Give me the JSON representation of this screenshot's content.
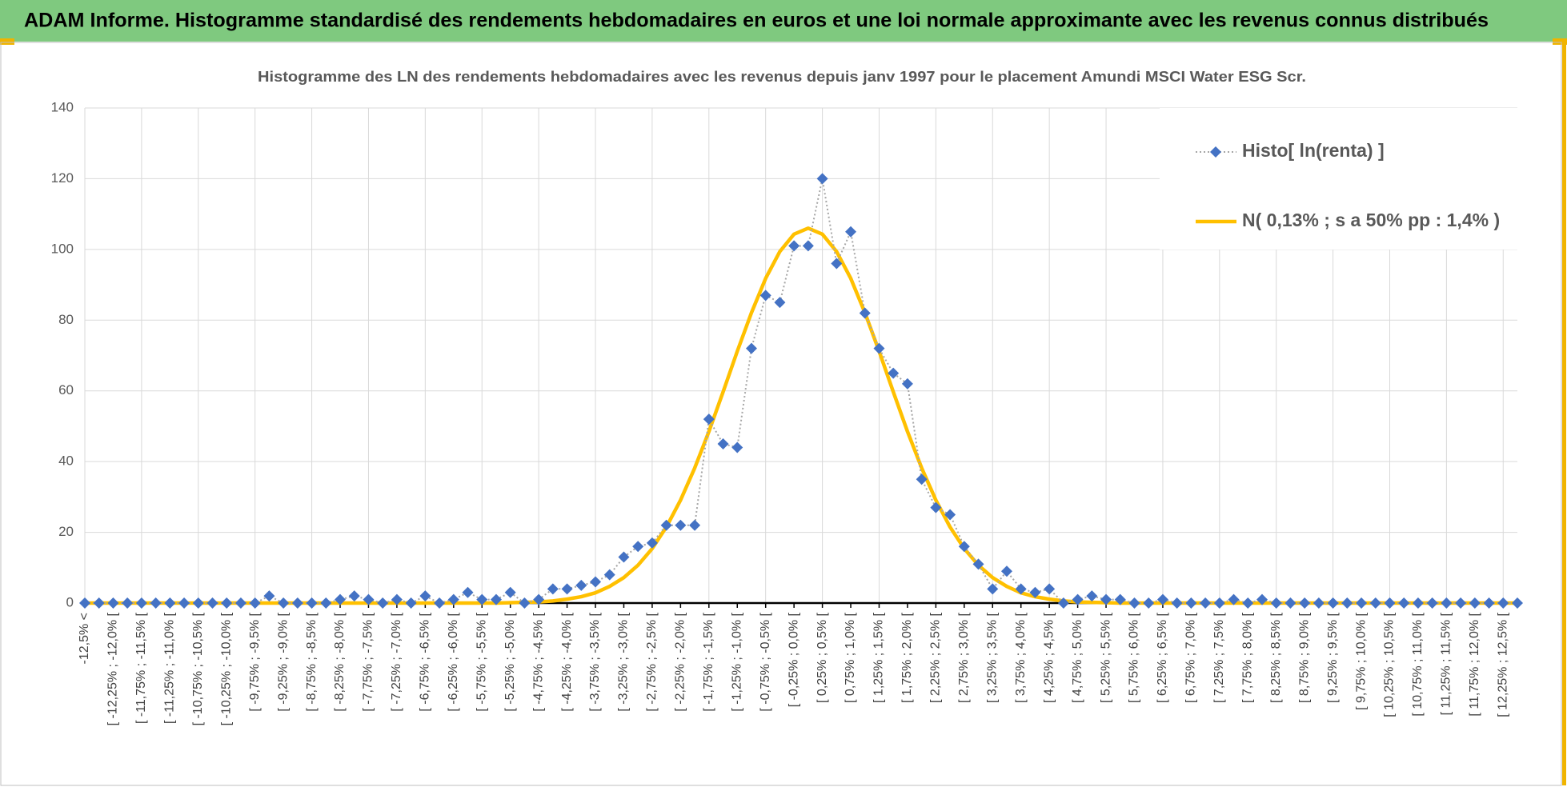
{
  "header": {
    "title": "ADAM Informe. Histogramme standardisé des rendements hebdomadaires en euros et une loi normale approximante avec les revenus connus distribués"
  },
  "chart_data": {
    "type": "line",
    "title": "Histogramme  des LN des rendements  hebdomadaires avec les revenus depuis janv 1997 pour le placement Amundi MSCI Water  ESG Scr.",
    "categories": [
      "-12,5% <",
      null,
      "[ -12,25% ; -12,0% [",
      null,
      "[ -11,75% ; -11,5% [",
      null,
      "[ -11,25% ; -11,0% [",
      null,
      "[ -10,75% ; -10,5% [",
      null,
      "[ -10,25% ; -10,0% [",
      null,
      "[ -9,75% ; -9,5% [",
      null,
      "[ -9,25% ; -9,0% [",
      null,
      "[ -8,75% ; -8,5% [",
      null,
      "[ -8,25% ; -8,0% [",
      null,
      "[ -7,75% ; -7,5% [",
      null,
      "[ -7,25% ; -7,0% [",
      null,
      "[ -6,75% ; -6,5% [",
      null,
      "[ -6,25% ; -6,0% [",
      null,
      "[ -5,75% ; -5,5% [",
      null,
      "[ -5,25% ; -5,0% [",
      null,
      "[ -4,75% ; -4,5% [",
      null,
      "[ -4,25% ; -4,0% [",
      null,
      "[ -3,75% ; -3,5% [",
      null,
      "[ -3,25% ; -3,0% [",
      null,
      "[ -2,75% ; -2,5% [",
      null,
      "[ -2,25% ; -2,0% [",
      null,
      "[ -1,75% ; -1,5% [",
      null,
      "[ -1,25% ; -1,0% [",
      null,
      "[ -0,75% ; -0,5% [",
      null,
      "[ -0,25% ; 0,0% [",
      null,
      "[ 0,25% ; 0,5% [",
      null,
      "[ 0,75% ; 1,0% [",
      null,
      "[ 1,25% ; 1,5% [",
      null,
      "[ 1,75% ; 2,0% [",
      null,
      "[ 2,25% ; 2,5% [",
      null,
      "[ 2,75% ; 3,0% [",
      null,
      "[ 3,25% ; 3,5% [",
      null,
      "[ 3,75% ; 4,0% [",
      null,
      "[ 4,25% ; 4,5% [",
      null,
      "[ 4,75% ; 5,0% [",
      null,
      "[ 5,25% ; 5,5% [",
      null,
      "[ 5,75% ; 6,0% [",
      null,
      "[ 6,25% ; 6,5% [",
      null,
      "[ 6,75% ; 7,0% [",
      null,
      "[ 7,25% ; 7,5% [",
      null,
      "[ 7,75% ; 8,0% [",
      null,
      "[ 8,25% ; 8,5% [",
      null,
      "[ 8,75% ; 9,0% [",
      null,
      "[ 9,25% ; 9,5% [",
      null,
      "[ 9,75% ; 10,0% [",
      null,
      "[ 10,25% ; 10,5% [",
      null,
      "[ 10,75% ; 11,0% [",
      null,
      "[ 11,25% ; 11,5% [",
      null,
      "[ 11,75% ; 12,0% [",
      null,
      "[ 12,25% ; 12,5% [",
      null
    ],
    "series": [
      {
        "name": "Histo[ ln(renta) ]",
        "color": "#4472c4",
        "line_color": "#a6a6a6",
        "style": "dotted-markers",
        "values": [
          0,
          0,
          0,
          0,
          0,
          0,
          0,
          0,
          0,
          0,
          0,
          0,
          0,
          2,
          0,
          0,
          0,
          0,
          1,
          2,
          1,
          0,
          1,
          0,
          2,
          0,
          1,
          3,
          1,
          1,
          3,
          0,
          1,
          4,
          4,
          5,
          6,
          8,
          13,
          16,
          17,
          22,
          22,
          22,
          52,
          45,
          44,
          72,
          87,
          85,
          101,
          101,
          120,
          96,
          105,
          82,
          72,
          65,
          62,
          35,
          27,
          25,
          16,
          11,
          4,
          9,
          4,
          3,
          4,
          0,
          1,
          2,
          1,
          1,
          0,
          0,
          1,
          0,
          0,
          0,
          0,
          1,
          0,
          1,
          0,
          0,
          0,
          0,
          0,
          0,
          0,
          0,
          0,
          0,
          0,
          0,
          0,
          0,
          0,
          0,
          0,
          0
        ]
      },
      {
        "name": "N( 0,13% ; s a 50% pp : 1,4% )",
        "color": "#ffc000",
        "style": "solid",
        "values": [
          0,
          0,
          0,
          0,
          0,
          0,
          0,
          0,
          0,
          0,
          0,
          0,
          0,
          0,
          0,
          0,
          0,
          0,
          0,
          0,
          0,
          0,
          0,
          0,
          0,
          0,
          0,
          0,
          0,
          0,
          0.1,
          0.2,
          0.3,
          0.6,
          1.1,
          1.8,
          2.9,
          4.7,
          7.2,
          10.7,
          15.4,
          21.5,
          29.1,
          38.2,
          48.5,
          59.7,
          71.2,
          82.1,
          91.8,
          99.4,
          104.3,
          106,
          104.3,
          99.4,
          91.8,
          82.1,
          71.2,
          59.7,
          48.5,
          38.2,
          29.1,
          21.5,
          15.4,
          10.7,
          7.2,
          4.7,
          2.9,
          1.8,
          1.1,
          0.6,
          0.3,
          0.2,
          0.1,
          0,
          0,
          0,
          0,
          0,
          0,
          0,
          0,
          0,
          0,
          0,
          0,
          0,
          0,
          0,
          0,
          0,
          0,
          0,
          0,
          0,
          0,
          0,
          0,
          0,
          0,
          0,
          0,
          0
        ]
      }
    ],
    "ylim": [
      0,
      140
    ],
    "yticks": [
      0,
      20,
      40,
      60,
      80,
      100,
      120,
      140
    ],
    "grid": true,
    "legend": "top-right"
  }
}
